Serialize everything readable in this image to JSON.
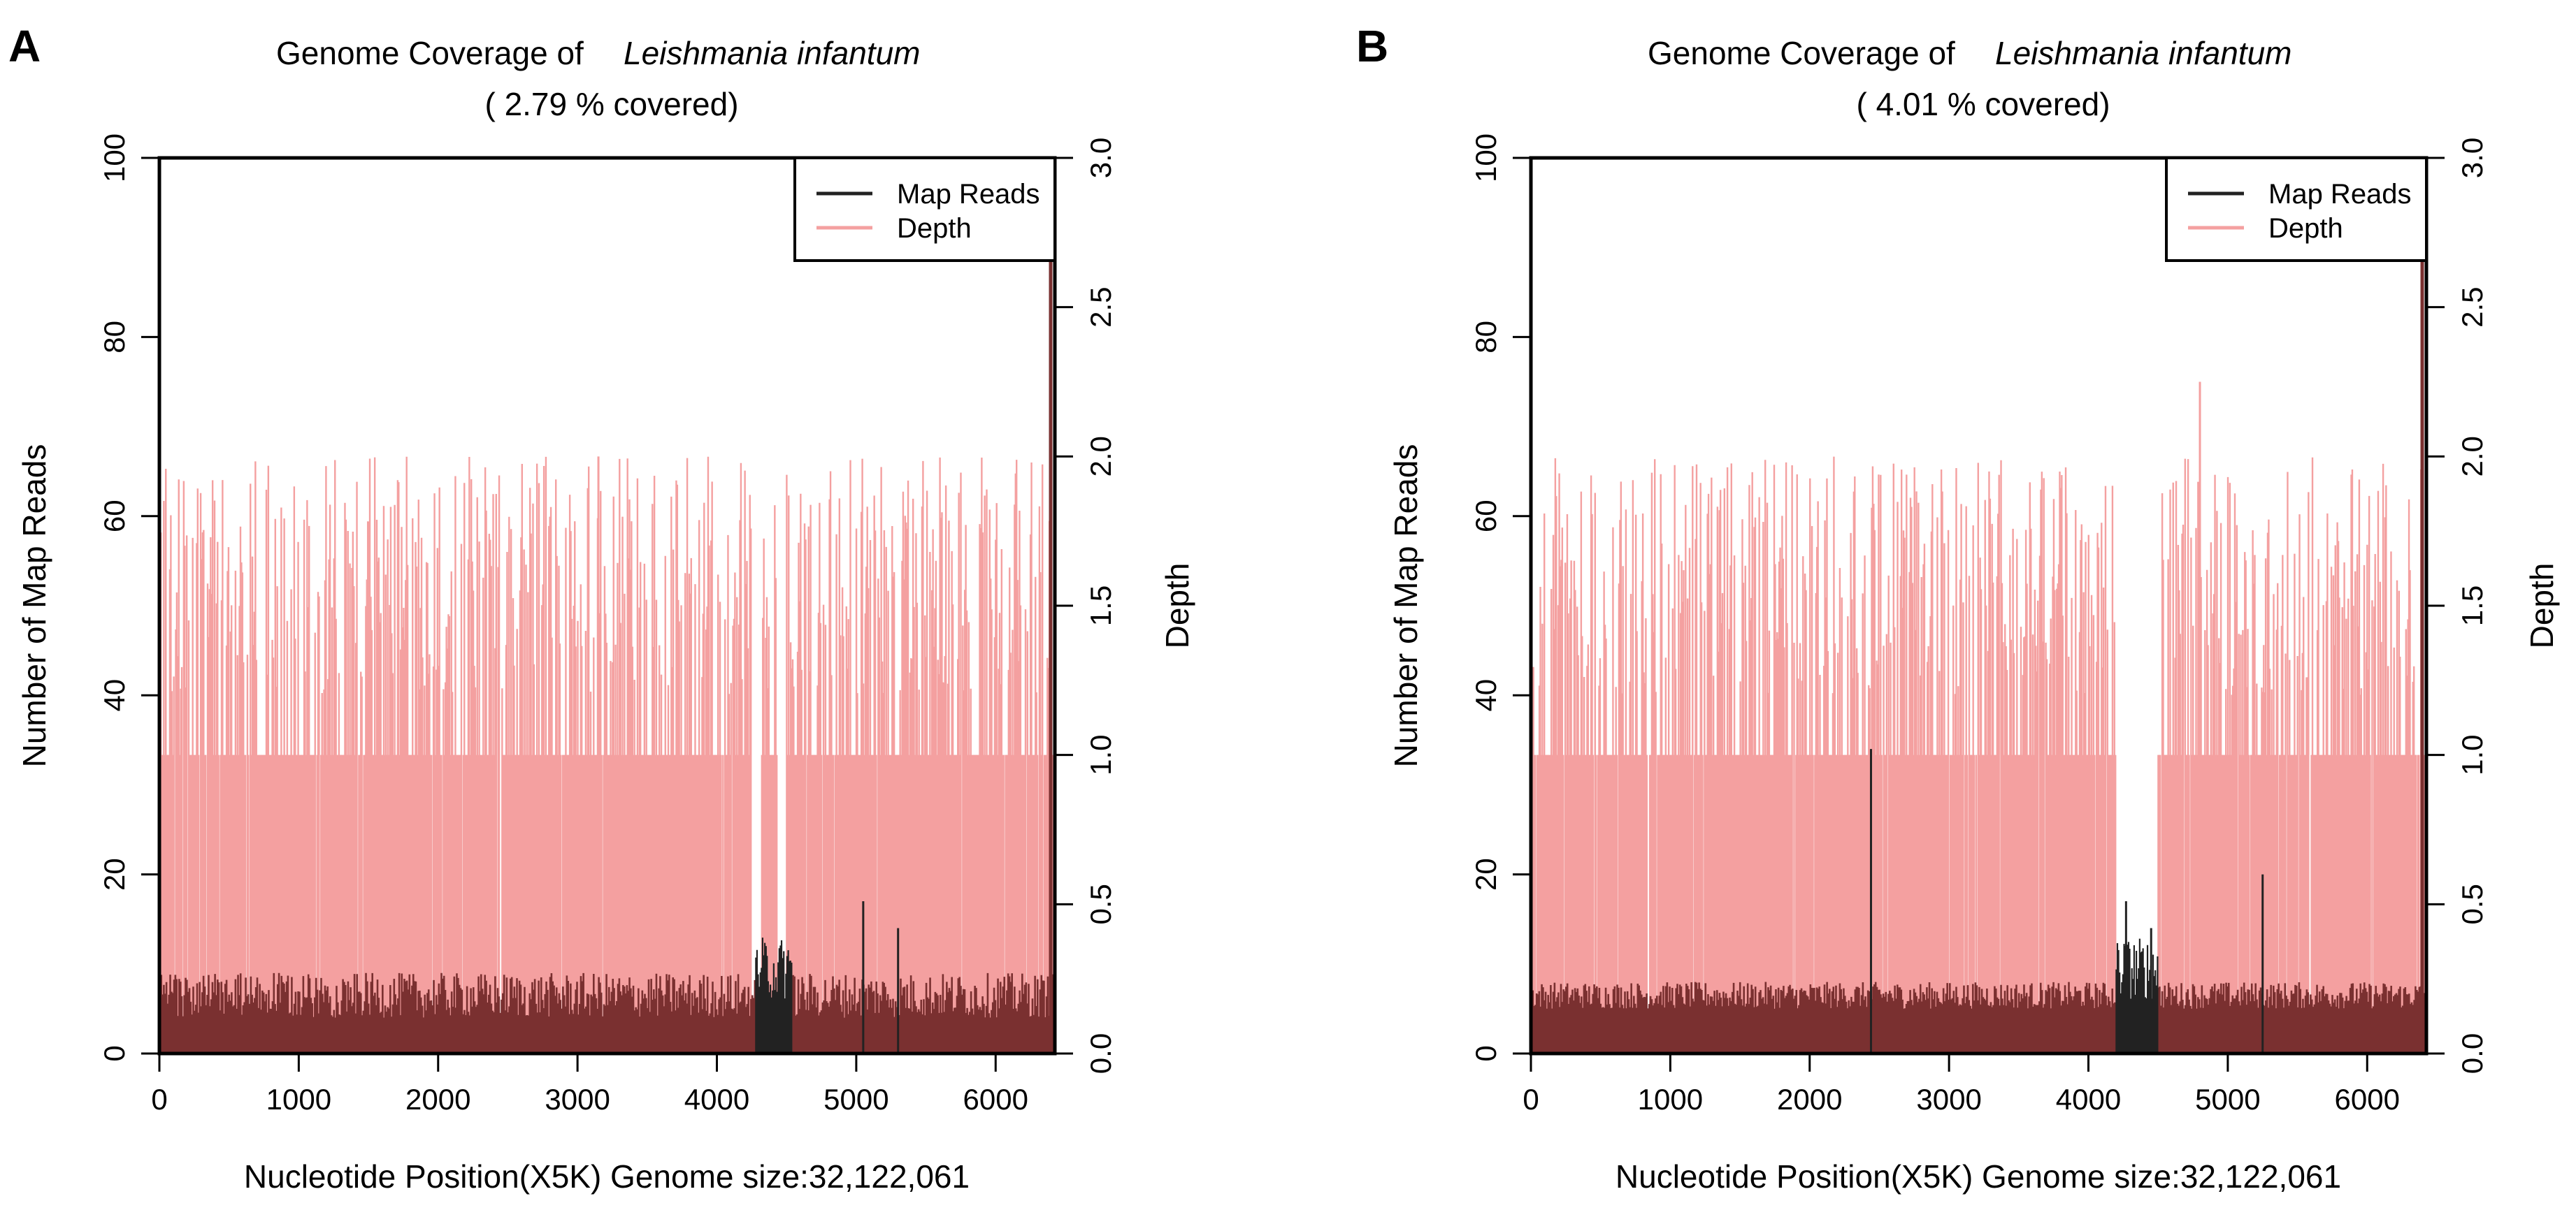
{
  "figure": {
    "panels": [
      {
        "letter": "A",
        "title_prefix": "Genome Coverage of",
        "organism": "Leishmania infantum",
        "subtitle": "( 2.79 % covered)",
        "seed": 11
      },
      {
        "letter": "B",
        "title_prefix": "Genome Coverage of",
        "organism": "Leishmania infantum",
        "subtitle": "( 4.01 % covered)",
        "seed": 29
      }
    ]
  },
  "chart_data": [
    {
      "type": "line",
      "title": "Genome Coverage of Leishmania infantum",
      "subtitle": "( 2.79 % covered)",
      "xlabel": "Nucleotide Position(X5K) Genome size:32,122,061",
      "ylabel": "Number of Map Reads",
      "y2label": "Depth",
      "xlim": [
        0,
        6425
      ],
      "ylim": [
        0,
        100
      ],
      "y2lim": [
        0,
        3.0
      ],
      "xticks": [
        "0",
        "1000",
        "2000",
        "3000",
        "4000",
        "5000",
        "6000"
      ],
      "yticks": [
        "0",
        "20",
        "40",
        "60",
        "80",
        "100"
      ],
      "y2ticks": [
        "0.0",
        "0.5",
        "1.0",
        "1.5",
        "2.0",
        "2.5",
        "3.0"
      ],
      "legend": {
        "position": "top-right",
        "entries": [
          "Map Reads",
          "Depth"
        ]
      },
      "colors": {
        "map_reads": "#222222",
        "depth": "#f4a0a0",
        "overlap": "#7a3030"
      },
      "series": [
        {
          "name": "Map Reads",
          "baseline": 5,
          "typical_range": [
            4,
            9
          ],
          "peaks": [
            {
              "x": 4350,
              "y": 12
            },
            {
              "x": 5050,
              "y": 17
            },
            {
              "x": 5300,
              "y": 14
            }
          ],
          "gap_regions": [
            [
              4280,
              4540
            ]
          ]
        },
        {
          "name": "Depth",
          "baseline": 1.0,
          "spike_range": [
            1.2,
            2.0
          ],
          "max_spike": 2.0,
          "gap_regions": [
            [
              4250,
              4320
            ],
            [
              4430,
              4500
            ]
          ]
        }
      ]
    },
    {
      "type": "line",
      "title": "Genome Coverage of Leishmania infantum",
      "subtitle": "( 4.01 % covered)",
      "xlabel": "Nucleotide Position(X5K) Genome size:32,122,061",
      "ylabel": "Number of Map Reads",
      "y2label": "Depth",
      "xlim": [
        0,
        6425
      ],
      "ylim": [
        0,
        100
      ],
      "y2lim": [
        0,
        3.0
      ],
      "xticks": [
        "0",
        "1000",
        "2000",
        "3000",
        "4000",
        "5000",
        "6000"
      ],
      "yticks": [
        "0",
        "20",
        "40",
        "60",
        "80",
        "100"
      ],
      "y2ticks": [
        "0.0",
        "0.5",
        "1.0",
        "1.5",
        "2.0",
        "2.5",
        "3.0"
      ],
      "legend": {
        "position": "top-right",
        "entries": [
          "Map Reads",
          "Depth"
        ]
      },
      "colors": {
        "map_reads": "#222222",
        "depth": "#f4a0a0",
        "overlap": "#7a3030"
      },
      "series": [
        {
          "name": "Map Reads",
          "baseline": 6,
          "typical_range": [
            5,
            8
          ],
          "peaks": [
            {
              "x": 2440,
              "y": 34
            },
            {
              "x": 4270,
              "y": 17
            },
            {
              "x": 4450,
              "y": 14
            },
            {
              "x": 5250,
              "y": 20
            }
          ],
          "gap_regions": [
            [
              4200,
              4500
            ]
          ]
        },
        {
          "name": "Depth",
          "baseline": 1.0,
          "spike_range": [
            1.2,
            2.0
          ],
          "max_spike": 2.25,
          "gap_regions": [
            [
              4200,
              4500
            ]
          ]
        }
      ]
    }
  ]
}
